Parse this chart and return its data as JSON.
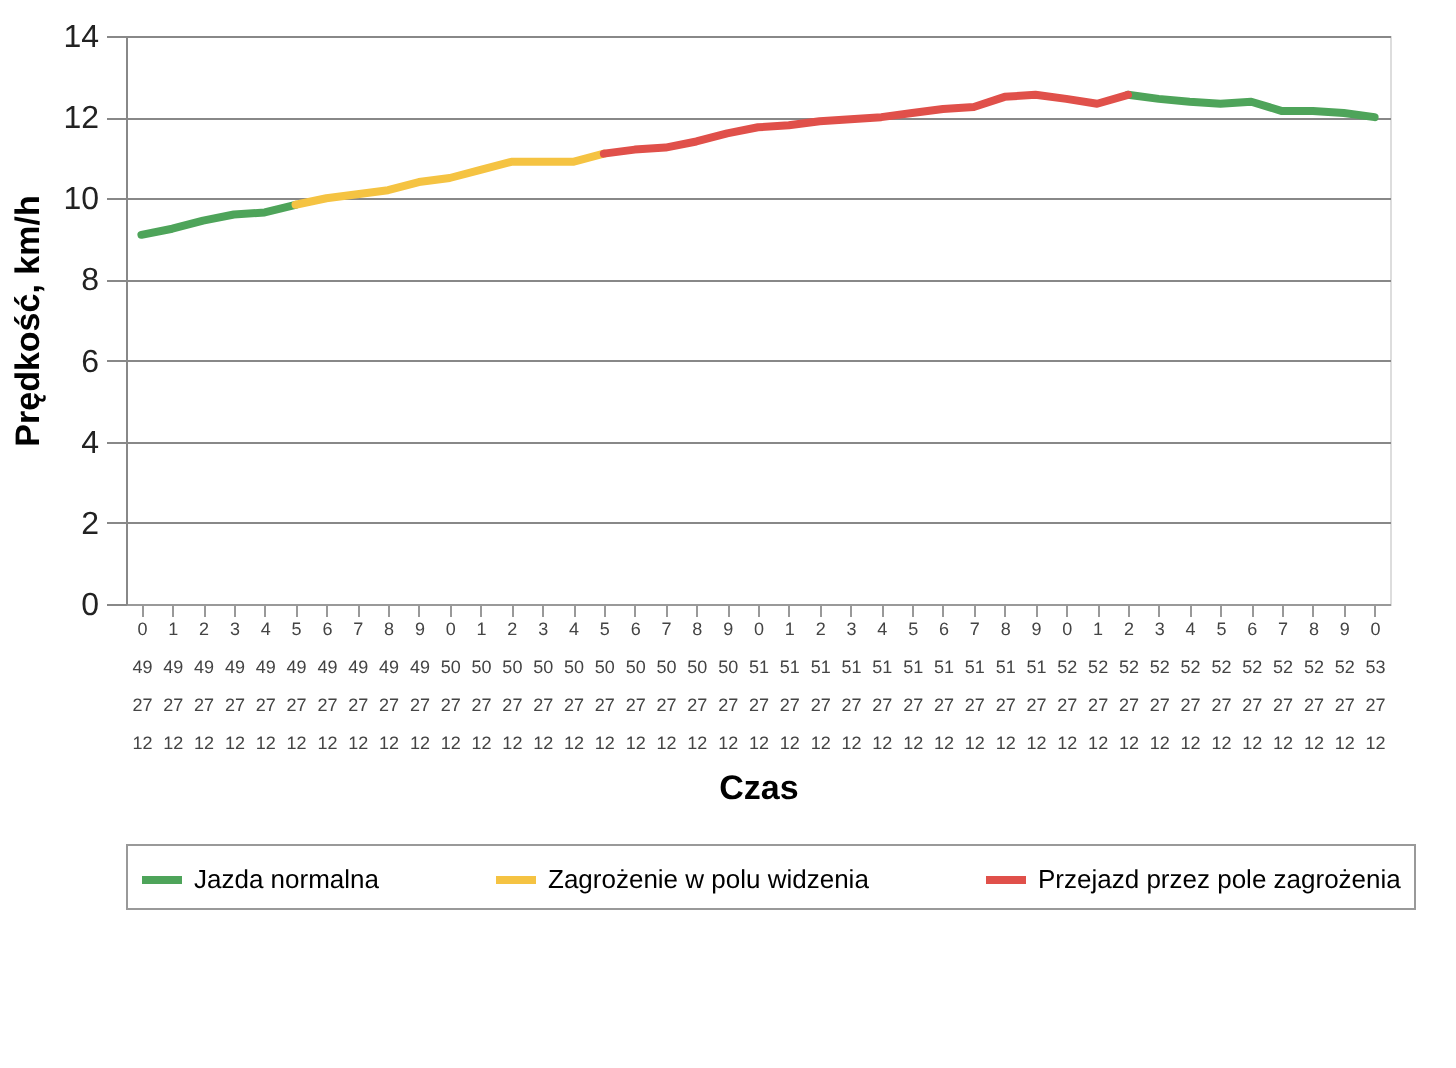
{
  "chart_data": {
    "type": "line",
    "xlabel": "Czas",
    "ylabel": "Prędkość, km/h",
    "categories": [
      "0\n49\n27\n12",
      "1\n49\n27\n12",
      "2\n49\n27\n12",
      "3\n49\n27\n12",
      "4\n49\n27\n12",
      "5\n49\n27\n12",
      "6\n49\n27\n12",
      "7\n49\n27\n12",
      "8\n49\n27\n12",
      "9\n49\n27\n12",
      "0\n50\n27\n12",
      "1\n50\n27\n12",
      "2\n50\n27\n12",
      "3\n50\n27\n12",
      "4\n50\n27\n12",
      "5\n50\n27\n12",
      "6\n50\n27\n12",
      "7\n50\n27\n12",
      "8\n50\n27\n12",
      "9\n50\n27\n12",
      "0\n51\n27\n12",
      "1\n51\n27\n12",
      "2\n51\n27\n12",
      "3\n51\n27\n12",
      "4\n51\n27\n12",
      "5\n51\n27\n12",
      "6\n51\n27\n12",
      "7\n51\n27\n12",
      "8\n51\n27\n12",
      "9\n51\n27\n12",
      "0\n52\n27\n12",
      "1\n52\n27\n12",
      "2\n52\n27\n12",
      "3\n52\n27\n12",
      "4\n52\n27\n12",
      "5\n52\n27\n12",
      "6\n52\n27\n12",
      "7\n52\n27\n12",
      "8\n52\n27\n12",
      "9\n52\n27\n12",
      "0\n53\n27\n12"
    ],
    "series": [
      {
        "name": "Jazda normalna",
        "color": "#4ea45a",
        "values": [
          9.1,
          9.25,
          9.45,
          9.6,
          9.65,
          9.84,
          null,
          null,
          null,
          null,
          null,
          null,
          null,
          null,
          null,
          null,
          null,
          null,
          null,
          null,
          null,
          null,
          null,
          null,
          null,
          null,
          null,
          null,
          null,
          null,
          null,
          null,
          12.55,
          12.45,
          12.38,
          12.33,
          12.38,
          12.15,
          12.15,
          12.1,
          12.0
        ]
      },
      {
        "name": "Zagrożenie w polu widzenia",
        "color": "#f5c342",
        "values": [
          null,
          null,
          null,
          null,
          null,
          9.84,
          10.0,
          10.1,
          10.2,
          10.4,
          10.5,
          10.7,
          10.9,
          10.9,
          10.9,
          11.1,
          null,
          null,
          null,
          null,
          null,
          null,
          null,
          null,
          null,
          null,
          null,
          null,
          null,
          null,
          null,
          null,
          null,
          null,
          null,
          null,
          null,
          null,
          null,
          null,
          null
        ]
      },
      {
        "name": "Przejazd przez pole zagrożenia",
        "color": "#e0504a",
        "values": [
          null,
          null,
          null,
          null,
          null,
          null,
          null,
          null,
          null,
          null,
          null,
          null,
          null,
          null,
          null,
          11.1,
          11.2,
          11.25,
          11.4,
          11.6,
          11.75,
          11.8,
          11.9,
          11.95,
          12.0,
          12.1,
          12.2,
          12.25,
          12.5,
          12.55,
          12.45,
          12.33,
          12.55,
          null,
          null,
          null,
          null,
          null,
          null,
          null,
          null
        ]
      }
    ],
    "ylim": [
      0,
      14
    ],
    "yticks": [
      0,
      2,
      4,
      6,
      8,
      10,
      12,
      14
    ],
    "grid": "y",
    "legend": "bottom",
    "marker": "none",
    "line_style": "solid"
  }
}
